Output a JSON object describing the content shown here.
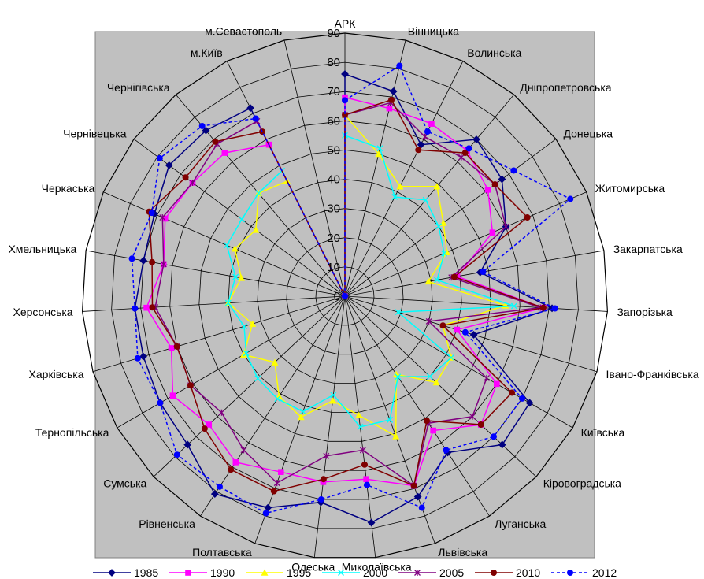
{
  "chart_data": {
    "type": "radar",
    "title": "",
    "categories": [
      "АРК",
      "Вінницька",
      "Волинська",
      "Дніпропетровська",
      "Донецька",
      "Житомирська",
      "Закарпатська",
      "Запорізька",
      "Івано-Франківська",
      "Київська",
      "Кіровоградська",
      "Луганська",
      "Львівська",
      "Миколаївська",
      "Одеська",
      "Полтавська",
      "Рівненська",
      "Сумська",
      "Тернопільська",
      "Харківська",
      "Херсонська",
      "Хмельницька",
      "Черкаська",
      "Чернівецька",
      "Чернігівська",
      "м.Київ",
      "м.Севастополь"
    ],
    "r_range": [
      0,
      90
    ],
    "r_ticks": [
      "0",
      "10",
      "20",
      "30",
      "40",
      "50",
      "60",
      "70",
      "80",
      "90"
    ],
    "grid": true,
    "plot_background": "#c0c0c0",
    "legend_position": "bottom",
    "series": [
      {
        "name": "1985",
        "color": "#000080",
        "marker": "diamond",
        "dash": false,
        "values": [
          76,
          72,
          58,
          70,
          67,
          60,
          47,
          71,
          46,
          73,
          74,
          64,
          73,
          78,
          71,
          77,
          81,
          74,
          73,
          72,
          72,
          70,
          71,
          75,
          74,
          72,
          0
        ]
      },
      {
        "name": "1990",
        "color": "#ff00ff",
        "marker": "square",
        "dash": false,
        "values": [
          68,
          66,
          66,
          65,
          61,
          55,
          39,
          68,
          40,
          60,
          64,
          55,
          69,
          63,
          64,
          64,
          68,
          64,
          68,
          62,
          68,
          63,
          67,
          65,
          64,
          58,
          0
        ]
      },
      {
        "name": "1995",
        "color": "#ffff00",
        "marker": "triangle",
        "dash": false,
        "values": [
          62,
          50,
          42,
          49,
          42,
          38,
          29,
          55,
          35,
          42,
          43,
          32,
          51,
          41,
          36,
          44,
          41,
          33,
          40,
          33,
          40,
          36,
          41,
          38,
          46,
          44,
          0
        ]
      },
      {
        "name": "2000",
        "color": "#00ffff",
        "marker": "x",
        "dash": false,
        "values": [
          55,
          52,
          38,
          43,
          40,
          37,
          32,
          58,
          19,
          42,
          40,
          33,
          45,
          45,
          34,
          42,
          42,
          41,
          39,
          36,
          40,
          38,
          44,
          44,
          46,
          48,
          0
        ]
      },
      {
        "name": "2005",
        "color": "#800080",
        "marker": "star",
        "dash": false,
        "values": [
          62,
          68,
          61,
          62,
          64,
          60,
          37,
          67,
          30,
          56,
          60,
          52,
          69,
          53,
          55,
          68,
          63,
          58,
          61,
          60,
          65,
          63,
          68,
          65,
          68,
          67,
          0
        ]
      },
      {
        "name": "2010",
        "color": "#800000",
        "marker": "circle",
        "dash": false,
        "values": [
          62,
          69,
          56,
          64,
          64,
          68,
          38,
          68,
          35,
          66,
          64,
          51,
          69,
          58,
          63,
          71,
          71,
          66,
          61,
          60,
          66,
          67,
          73,
          68,
          69,
          63,
          0
        ]
      },
      {
        "name": "2012",
        "color": "#0000ff",
        "marker": "circle",
        "dash": true,
        "values": [
          67,
          81,
          63,
          66,
          72,
          84,
          48,
          72,
          43,
          70,
          70,
          63,
          77,
          65,
          70,
          79,
          78,
          79,
          73,
          74,
          72,
          74,
          72,
          79,
          76,
          68,
          0
        ]
      }
    ]
  }
}
